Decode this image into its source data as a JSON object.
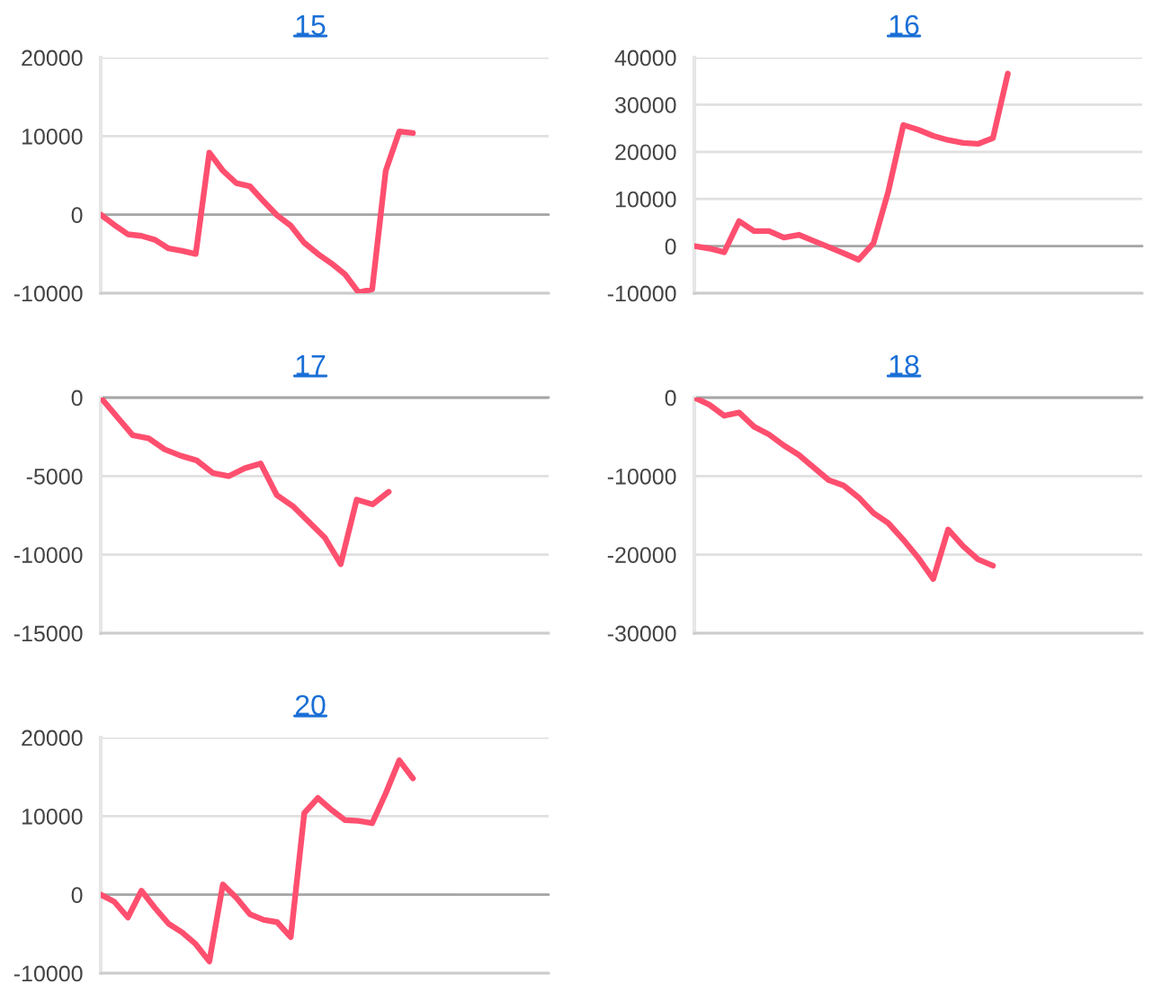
{
  "chart_data": [
    {
      "type": "line",
      "title": "15",
      "categories": [
        null,
        null,
        null,
        null,
        null,
        null,
        null,
        null,
        null,
        null,
        null,
        null,
        null,
        null,
        null,
        null,
        null,
        null,
        null,
        null,
        null,
        null,
        null,
        null,
        null,
        null,
        null,
        null,
        null,
        null,
        null,
        null,
        null,
        null
      ],
      "series": [
        {
          "color": "#ff4f6f",
          "values": [
            0,
            -1300,
            -2500,
            -2700,
            -3200,
            -4300,
            -4600,
            -5000,
            7900,
            5600,
            4000,
            3600,
            1700,
            -100,
            -1400,
            -3600,
            -5000,
            -6200,
            -7600,
            -9900,
            -9500,
            5600,
            10600,
            10400,
            null,
            null,
            null,
            null,
            null,
            null,
            null,
            null,
            null,
            null
          ]
        }
      ],
      "ylim": [
        -10000,
        20000
      ],
      "yticks": [
        -10000,
        0,
        10000,
        20000
      ],
      "grid": "y",
      "tick_labels": "y",
      "ref_lines": [
        {
          "axis": "y",
          "value": 0,
          "color": "#a6a6a6"
        }
      ]
    },
    {
      "type": "line",
      "title": "16",
      "categories": [
        null,
        null,
        null,
        null,
        null,
        null,
        null,
        null,
        null,
        null,
        null,
        null,
        null,
        null,
        null,
        null,
        null,
        null,
        null,
        null,
        null,
        null,
        null,
        null,
        null,
        null,
        null,
        null,
        null,
        null,
        null
      ],
      "series": [
        {
          "color": "#ff4f6f",
          "values": [
            0,
            -500,
            -1300,
            5300,
            3200,
            3200,
            1800,
            2400,
            1100,
            -200,
            -1500,
            -2900,
            600,
            11700,
            25700,
            24700,
            23400,
            22500,
            21900,
            21700,
            22900,
            36600,
            null,
            null,
            null,
            null,
            null,
            null,
            null,
            null,
            null
          ]
        }
      ],
      "ylim": [
        -10000,
        40000
      ],
      "yticks": [
        -10000,
        0,
        10000,
        20000,
        30000,
        40000
      ],
      "grid": "y",
      "tick_labels": "y",
      "ref_lines": [
        {
          "axis": "y",
          "value": 0,
          "color": "#a6a6a6"
        }
      ]
    },
    {
      "type": "line",
      "title": "17",
      "categories": [
        null,
        null,
        null,
        null,
        null,
        null,
        null,
        null,
        null,
        null,
        null,
        null,
        null,
        null,
        null,
        null,
        null,
        null,
        null,
        null,
        null,
        null,
        null,
        null,
        null,
        null,
        null,
        null,
        null
      ],
      "series": [
        {
          "color": "#ff4f6f",
          "values": [
            0,
            -1200,
            -2400,
            -2600,
            -3300,
            -3700,
            -4000,
            -4800,
            -5000,
            -4500,
            -4200,
            -6200,
            -6900,
            -7900,
            -8900,
            -10600,
            -6500,
            -6800,
            -6000,
            null,
            null,
            null,
            null,
            null,
            null,
            null,
            null,
            null,
            null
          ]
        }
      ],
      "ylim": [
        -15000,
        0
      ],
      "yticks": [
        -15000,
        -10000,
        -5000,
        0
      ],
      "grid": "y",
      "tick_labels": "y",
      "ref_lines": [
        {
          "axis": "y",
          "value": 0,
          "color": "#a6a6a6"
        }
      ]
    },
    {
      "type": "line",
      "title": "18",
      "categories": [
        null,
        null,
        null,
        null,
        null,
        null,
        null,
        null,
        null,
        null,
        null,
        null,
        null,
        null,
        null,
        null,
        null,
        null,
        null,
        null,
        null,
        null,
        null,
        null,
        null,
        null,
        null,
        null,
        null,
        null,
        null
      ],
      "series": [
        {
          "color": "#ff4f6f",
          "values": [
            0,
            -900,
            -2300,
            -1900,
            -3700,
            -4700,
            -6100,
            -7300,
            -8900,
            -10500,
            -11200,
            -12700,
            -14700,
            -16000,
            -18100,
            -20400,
            -23100,
            -16800,
            -18900,
            -20600,
            -21400,
            null,
            null,
            null,
            null,
            null,
            null,
            null,
            null,
            null,
            null
          ]
        }
      ],
      "ylim": [
        -30000,
        0
      ],
      "yticks": [
        -30000,
        -20000,
        -10000,
        0
      ],
      "grid": "y",
      "tick_labels": "y",
      "ref_lines": [
        {
          "axis": "y",
          "value": 0,
          "color": "#a6a6a6"
        }
      ]
    },
    {
      "type": "line",
      "title": "20",
      "categories": [
        null,
        null,
        null,
        null,
        null,
        null,
        null,
        null,
        null,
        null,
        null,
        null,
        null,
        null,
        null,
        null,
        null,
        null,
        null,
        null,
        null,
        null,
        null,
        null,
        null,
        null,
        null,
        null,
        null,
        null,
        null,
        null,
        null,
        null
      ],
      "series": [
        {
          "color": "#ff4f6f",
          "values": [
            0,
            -900,
            -2900,
            500,
            -1700,
            -3700,
            -4800,
            -6300,
            -8500,
            1300,
            -400,
            -2500,
            -3200,
            -3500,
            -5400,
            10400,
            12300,
            10800,
            9500,
            9400,
            9100,
            12900,
            17100,
            14800,
            null,
            null,
            null,
            null,
            null,
            null,
            null,
            null,
            null,
            null
          ]
        }
      ],
      "ylim": [
        -10000,
        20000
      ],
      "yticks": [
        -10000,
        0,
        10000,
        20000
      ],
      "grid": "y",
      "tick_labels": "y",
      "ref_lines": [
        {
          "axis": "y",
          "value": 0,
          "color": "#a6a6a6"
        }
      ]
    }
  ]
}
